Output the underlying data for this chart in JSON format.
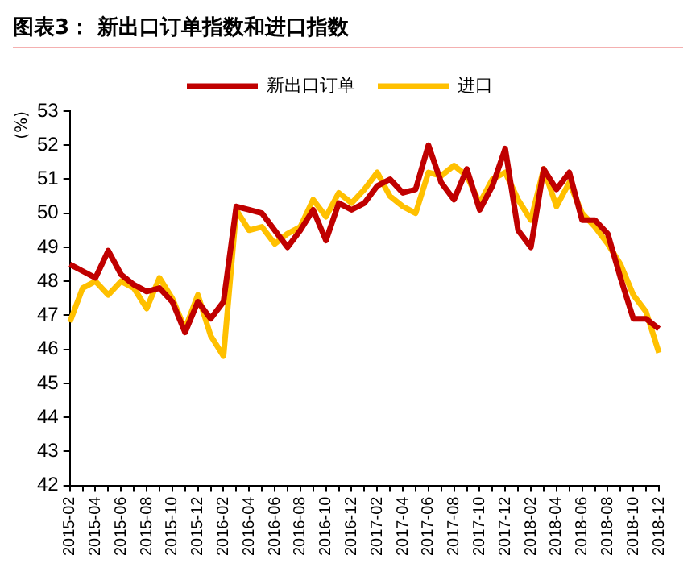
{
  "chart_data": {
    "type": "line",
    "title": "图表3： 新出口订单指数和进口指数",
    "ylabel": "(%)",
    "categories": [
      "2015-02",
      null,
      "2015-04",
      null,
      "2015-06",
      null,
      "2015-08",
      null,
      "2015-10",
      null,
      "2015-12",
      null,
      "2016-02",
      null,
      "2016-04",
      null,
      "2016-06",
      null,
      "2016-08",
      null,
      "2016-10",
      null,
      "2016-12",
      null,
      "2017-02",
      null,
      "2017-04",
      null,
      "2017-06",
      null,
      "2017-08",
      null,
      "2017-10",
      null,
      "2017-12",
      null,
      "2018-02",
      null,
      "2018-04",
      null,
      "2018-06",
      null,
      "2018-08",
      null,
      "2018-10",
      null,
      "2018-12"
    ],
    "series": [
      {
        "name": "新出口订单",
        "color": "#c00000",
        "values": [
          48.5,
          48.3,
          48.1,
          48.9,
          48.2,
          47.9,
          47.7,
          47.8,
          47.4,
          46.5,
          47.4,
          46.9,
          47.4,
          50.2,
          50.1,
          50.0,
          49.5,
          49.0,
          49.5,
          50.1,
          49.2,
          50.3,
          50.1,
          50.3,
          50.8,
          51.0,
          50.6,
          50.7,
          52.0,
          50.9,
          50.4,
          51.3,
          50.1,
          50.8,
          51.9,
          49.5,
          49.0,
          51.3,
          50.7,
          51.2,
          49.8,
          49.8,
          49.4,
          48.1,
          46.9,
          46.9,
          46.6
        ]
      },
      {
        "name": "进口",
        "color": "#ffc000",
        "values": [
          46.8,
          47.8,
          48.0,
          47.6,
          48.0,
          47.8,
          47.2,
          48.1,
          47.5,
          46.6,
          47.6,
          46.4,
          45.8,
          50.1,
          49.5,
          49.6,
          49.1,
          49.4,
          49.6,
          50.4,
          49.9,
          50.6,
          50.3,
          50.7,
          51.2,
          50.5,
          50.2,
          50.0,
          51.2,
          51.1,
          51.4,
          51.1,
          50.3,
          51.0,
          51.2,
          50.4,
          49.8,
          51.3,
          50.2,
          50.9,
          50.0,
          49.6,
          49.1,
          48.5,
          47.6,
          47.1,
          45.9
        ]
      }
    ],
    "ylim": [
      42,
      53
    ],
    "yticks": [
      42,
      43,
      44,
      45,
      46,
      47,
      48,
      49,
      50,
      51,
      52,
      53
    ],
    "legend": "top",
    "grid": false
  }
}
